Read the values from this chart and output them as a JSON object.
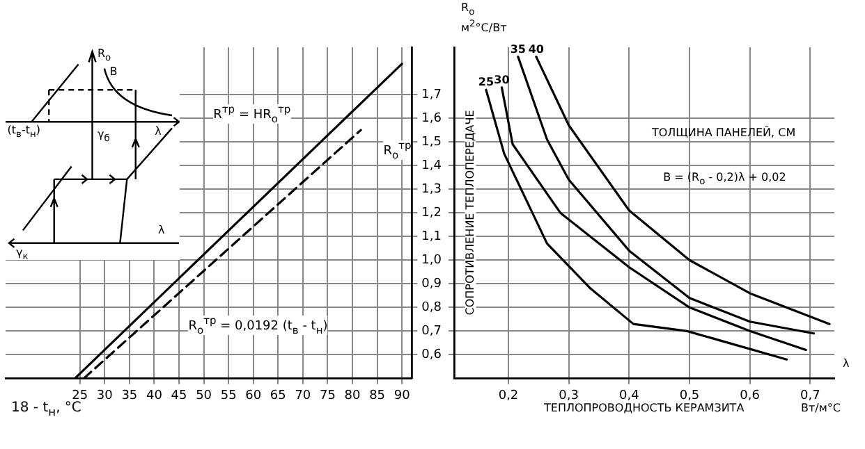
{
  "chart_data": [
    {
      "type": "line",
      "xlabel": "18 - t$_{н}$, °C",
      "xlim": [
        10,
        92
      ],
      "xticks": [
        25,
        30,
        35,
        40,
        45,
        50,
        55,
        60,
        65,
        70,
        75,
        80,
        85,
        90
      ],
      "ylim": [
        0.5,
        1.9
      ],
      "yticks": [
        {
          "value": 0.6,
          "label": "0,6"
        },
        {
          "value": 0.7,
          "label": "0,7"
        },
        {
          "value": 0.8,
          "label": "0,8"
        },
        {
          "value": 0.9,
          "label": "0,9"
        },
        {
          "value": 1.0,
          "label": "1,0"
        },
        {
          "value": 1.1,
          "label": "1,1"
        },
        {
          "value": 1.2,
          "label": "1,2"
        },
        {
          "value": 1.3,
          "label": "1,3"
        },
        {
          "value": 1.4,
          "label": "1,4"
        },
        {
          "value": 1.5,
          "label": "1,5"
        },
        {
          "value": 1.6,
          "label": "1,6"
        },
        {
          "value": 1.7,
          "label": "1,7"
        }
      ],
      "grid": true,
      "legend": false,
      "marker": "none",
      "series": [
        {
          "color": "#000000",
          "line_style": "solid",
          "x": [
            24,
            90
          ],
          "values": [
            0.5,
            1.83
          ]
        },
        {
          "color": "#000000",
          "line_style": "dashed",
          "x": [
            25.8,
            81.7
          ],
          "values": [
            0.5,
            1.55
          ]
        }
      ],
      "annotations": [
        "R$^{тр}$ = HR$_{о}$$^{тр}$",
        "R$_{о}$$^{тр}$",
        "R$_{о}$$^{тр}$ = 0,0192 (t$_{в}$ - t$_{н}$)",
        "R$_{о}$",
        "B",
        "(t$_{в}$-t$_{н}$)",
        "λ",
        "γ$_{б}$",
        "λ",
        "γ$_{к}$"
      ]
    },
    {
      "type": "line",
      "xlabel": "ТЕПЛОПРОВОДНОСТЬ КЕРАМЗИТА",
      "ylabel": "СОПРОТИВЛЕНИЕ ТЕПЛОПЕРЕДАЧЕ",
      "legend_title": "ТОЛЩИНА ПАНЕЛЕЙ, СМ",
      "xlim": [
        0.11,
        0.74
      ],
      "xticks": [
        {
          "value": 0.2,
          "label": "0,2"
        },
        {
          "value": 0.3,
          "label": "0,3"
        },
        {
          "value": 0.4,
          "label": "0,4"
        },
        {
          "value": 0.5,
          "label": "0,5"
        },
        {
          "value": 0.6,
          "label": "0,6"
        },
        {
          "value": 0.7,
          "label": "0,7"
        }
      ],
      "ylim": [
        0.5,
        1.9
      ],
      "yticks": [
        0.6,
        0.7,
        0.8,
        0.9,
        1.0,
        1.1,
        1.2,
        1.3,
        1.4,
        1.5,
        1.6
      ],
      "tick_labels": "x",
      "grid": true,
      "legend": false,
      "marker": "none",
      "series": [
        {
          "name": "25",
          "color": "#000000",
          "x": [
            0.163,
            0.193,
            0.264,
            0.336,
            0.407,
            0.496,
            0.661
          ],
          "values": [
            1.72,
            1.45,
            1.07,
            0.88,
            0.73,
            0.7,
            0.58
          ]
        },
        {
          "name": "30",
          "color": "#000000",
          "x": [
            0.189,
            0.207,
            0.286,
            0.4,
            0.5,
            0.6,
            0.693
          ],
          "values": [
            1.73,
            1.49,
            1.2,
            0.97,
            0.8,
            0.7,
            0.62
          ]
        },
        {
          "name": "35",
          "color": "#000000",
          "x": [
            0.216,
            0.264,
            0.3,
            0.4,
            0.5,
            0.6,
            0.706
          ],
          "values": [
            1.86,
            1.51,
            1.34,
            1.04,
            0.84,
            0.74,
            0.69
          ]
        },
        {
          "name": "40",
          "color": "#000000",
          "x": [
            0.246,
            0.3,
            0.4,
            0.5,
            0.6,
            0.732
          ],
          "values": [
            1.86,
            1.57,
            1.21,
            1.0,
            0.86,
            0.73
          ]
        }
      ],
      "annotations": [
        "R$_{о}$",
        "м$^{2}$°C/Вт",
        "λ",
        "Вт/м°C",
        "B = (R$_{о}$ - 0,2)λ + 0,02"
      ]
    }
  ]
}
